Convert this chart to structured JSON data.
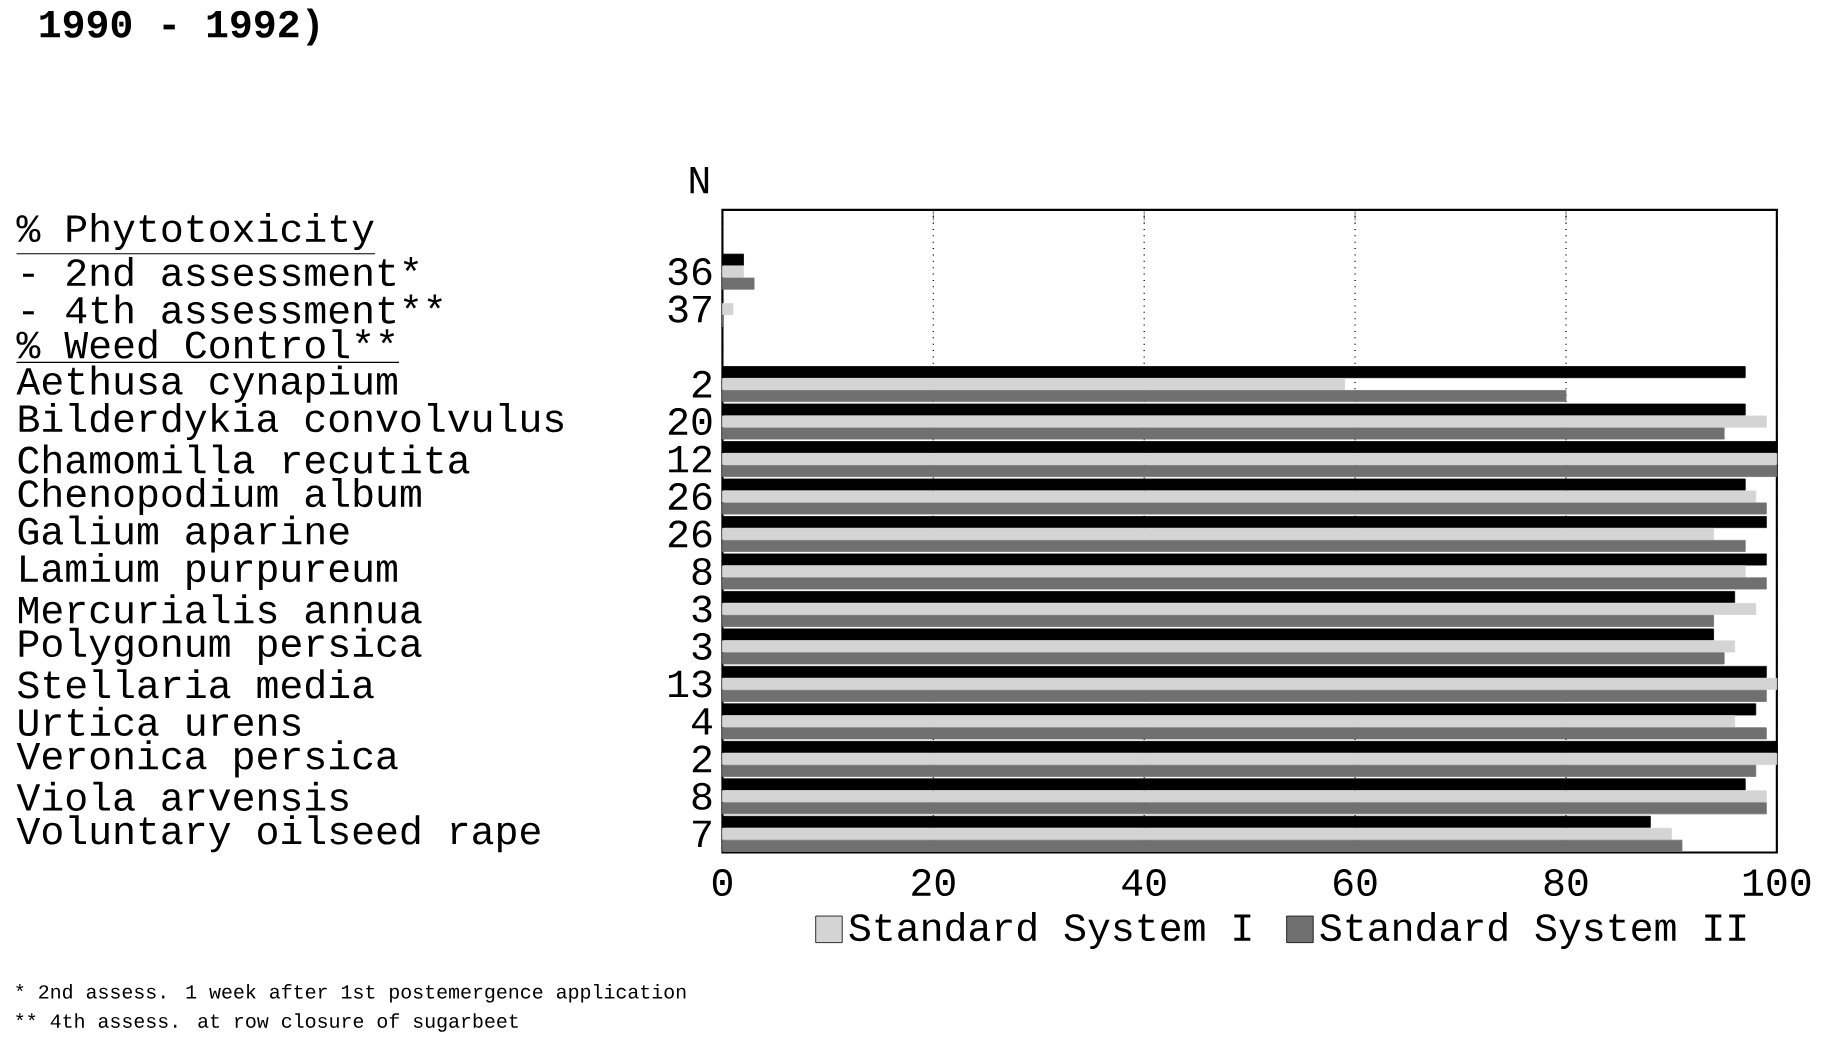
{
  "chart_data": {
    "type": "bar",
    "orientation": "horizontal",
    "title": "1990 - 1992)",
    "categories": [
      "% Phytotoxicity",
      "- 2nd assessment*",
      "- 4th assessment**",
      "% Weed Control**",
      "Aethusa cynapium",
      "Bilderdykia convolvulus",
      "Chamomilla recutita",
      "Chenopodium album",
      "Galium aparine",
      "Lamium purpureum",
      "Mercurialis annua",
      "Polygonum persica",
      "Stellaria media",
      "Urtica urens",
      "Veronica persica",
      "Viola arvensis",
      "Voluntary oilseed rape"
    ],
    "series": [
      {
        "color": "#000000",
        "values": [
          null,
          2,
          0,
          null,
          97,
          97,
          100,
          97,
          99,
          99,
          96,
          94,
          99,
          98,
          100,
          97,
          88
        ]
      },
      {
        "name": "Standard System I",
        "color": "#d4d4d4",
        "values": [
          null,
          2,
          1,
          null,
          59,
          99,
          100,
          98,
          94,
          97,
          98,
          96,
          100,
          96,
          100,
          99,
          90
        ]
      },
      {
        "name": "Standard System II",
        "color": "#707070",
        "values": [
          null,
          3,
          0,
          null,
          80,
          95,
          100,
          99,
          97,
          99,
          94,
          95,
          99,
          99,
          98,
          99,
          91
        ]
      }
    ],
    "xlim": [
      0,
      100
    ],
    "xticks": [
      0,
      20,
      40,
      60,
      80,
      100
    ],
    "grid": "x",
    "legend": "bottom",
    "annotations": [
      "N",
      "36",
      "37",
      "2",
      "20",
      "12",
      "26",
      "26",
      "8",
      "3",
      "3",
      "13",
      "4",
      "2",
      "8",
      "7",
      "* 2nd assess. 1 week after 1st postemergence application",
      "** 4th assess. at row closure of sugarbeet"
    ]
  }
}
